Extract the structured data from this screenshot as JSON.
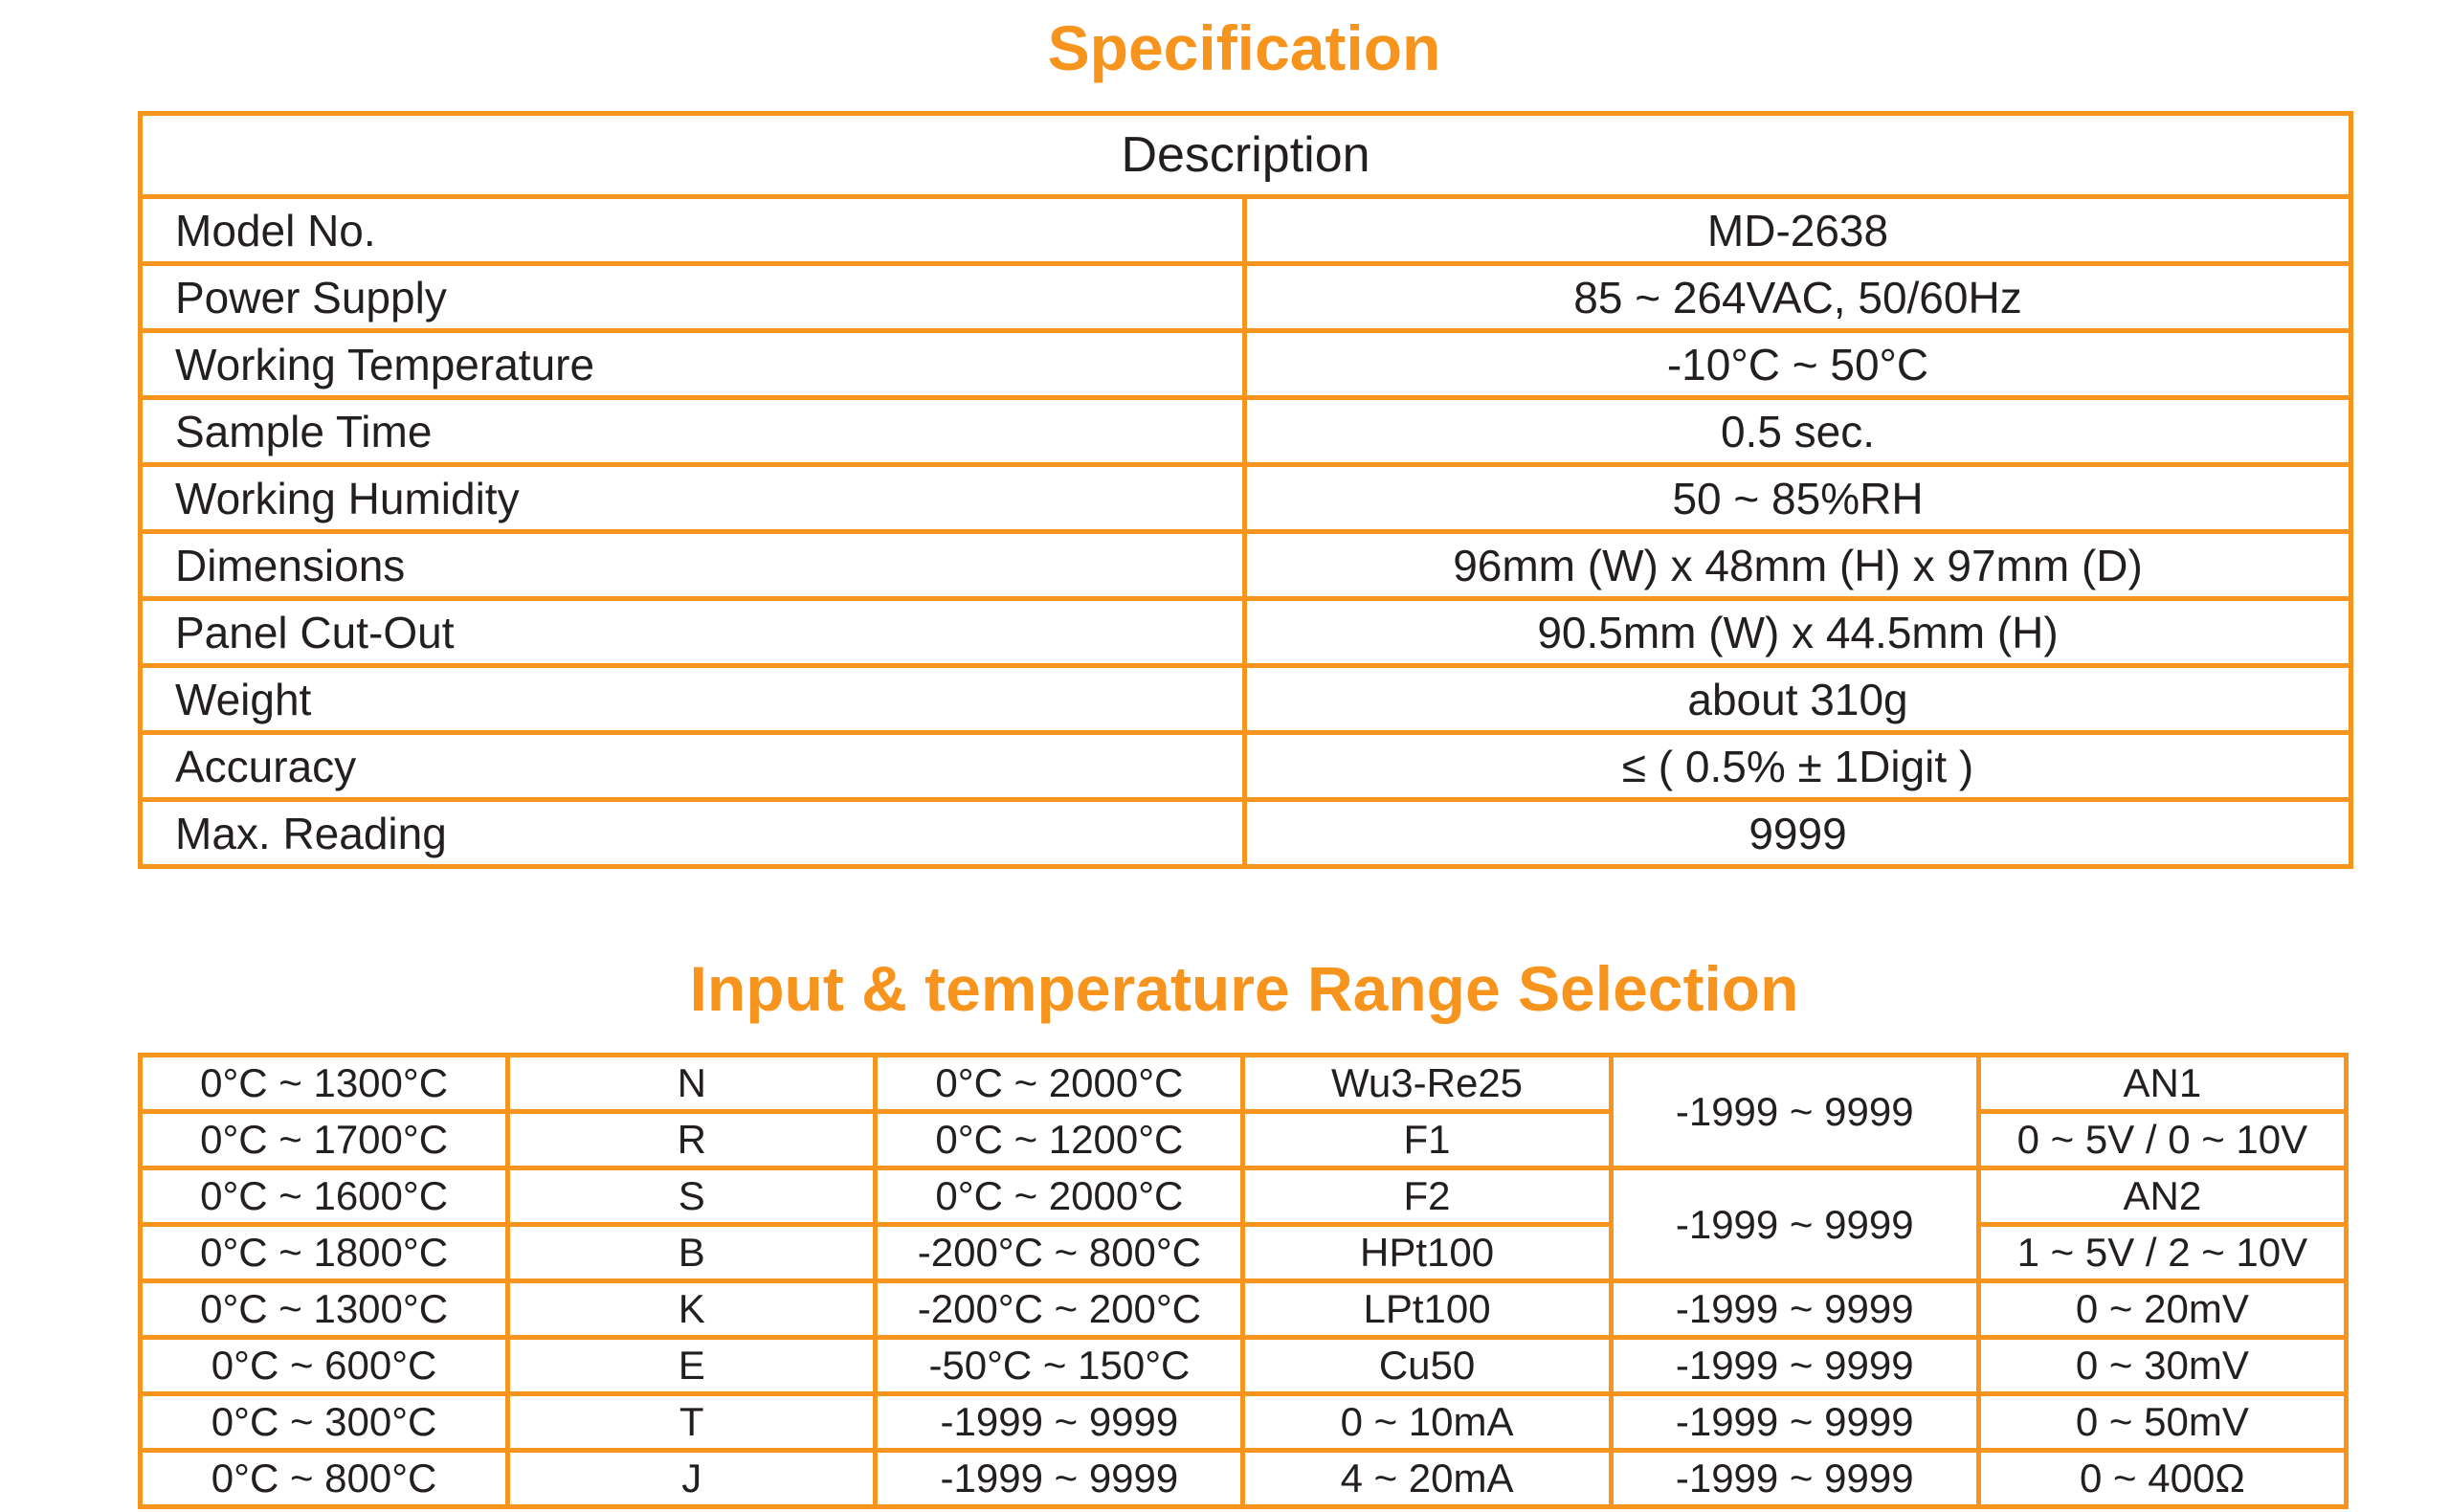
{
  "spec": {
    "title": "Specification",
    "header": "Description",
    "rows": [
      [
        "Model No.",
        "MD-2638"
      ],
      [
        "Power Supply",
        "85 ~ 264VAC, 50/60Hz"
      ],
      [
        "Working Temperature",
        "-10°C ~ 50°C"
      ],
      [
        "Sample Time",
        "0.5 sec."
      ],
      [
        "Working Humidity",
        "50 ~ 85%RH"
      ],
      [
        "Dimensions",
        "96mm (W) x 48mm (H) x 97mm (D)"
      ],
      [
        "Panel Cut-Out",
        "90.5mm (W) x 44.5mm (H)"
      ],
      [
        "Weight",
        "about 310g"
      ],
      [
        "Accuracy",
        "≤ ( 0.5% ± 1Digit )"
      ],
      [
        "Max. Reading",
        "9999"
      ]
    ]
  },
  "range": {
    "title": "Input & temperature Range Selection",
    "rows": [
      [
        "0°C ~ 1300°C",
        "N",
        "0°C ~ 2000°C",
        "Wu3-Re25",
        "-1999 ~ 9999",
        "AN1"
      ],
      [
        "0°C ~ 1700°C",
        "R",
        "0°C ~ 1200°C",
        "F1",
        "0 ~ 5V / 0 ~ 10V"
      ],
      [
        "0°C ~ 1600°C",
        "S",
        "0°C ~ 2000°C",
        "F2",
        "-1999 ~ 9999",
        "AN2"
      ],
      [
        "0°C ~ 1800°C",
        "B",
        "-200°C ~ 800°C",
        "HPt100",
        "1 ~ 5V / 2 ~ 10V"
      ],
      [
        "0°C ~ 1300°C",
        "K",
        "-200°C ~ 200°C",
        "LPt100",
        "-1999 ~ 9999",
        "0 ~ 20mV"
      ],
      [
        "0°C ~ 600°C",
        "E",
        "-50°C ~ 150°C",
        "Cu50",
        "-1999 ~ 9999",
        "0 ~ 30mV"
      ],
      [
        "0°C ~ 300°C",
        "T",
        "-1999 ~ 9999",
        "0 ~ 10mA",
        "-1999 ~ 9999",
        "0 ~ 50mV"
      ],
      [
        "0°C ~ 800°C",
        "J",
        "-1999 ~ 9999",
        "4 ~ 20mA",
        "-1999 ~ 9999",
        "0 ~ 400Ω"
      ]
    ]
  }
}
